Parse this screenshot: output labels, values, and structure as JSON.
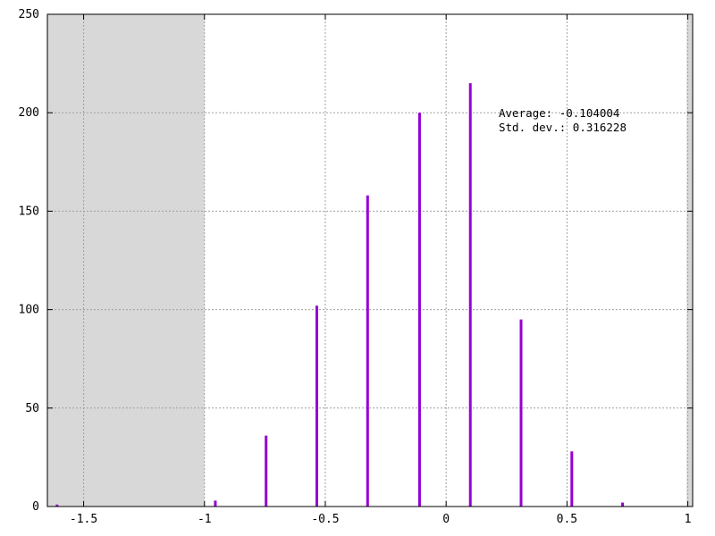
{
  "chart_data": {
    "type": "bar",
    "title": "",
    "xlabel": "",
    "ylabel": "",
    "xlim": [
      -1.65,
      1.02
    ],
    "ylim": [
      0,
      250
    ],
    "grid": true,
    "shaded_regions": [
      {
        "x_from": -1.65,
        "x_to": -1.0,
        "color": "#d8d8d8"
      },
      {
        "x_from": 0.995,
        "x_to": 1.02,
        "color": "#d8d8d8"
      }
    ],
    "bar_color": "#9400d3",
    "x_ticks": [
      -1.5,
      -1,
      -0.5,
      0,
      0.5,
      1
    ],
    "x_tick_labels": [
      "-1.5",
      "-1",
      "-0.5",
      "0",
      "0.5",
      "1"
    ],
    "y_ticks": [
      0,
      50,
      100,
      150,
      200,
      250
    ],
    "y_tick_labels": [
      "0",
      "50",
      "100",
      "150",
      "200",
      "250"
    ],
    "bars": [
      {
        "x": -1.61,
        "value": 1
      },
      {
        "x": -0.955,
        "value": 3
      },
      {
        "x": -0.745,
        "value": 36
      },
      {
        "x": -0.535,
        "value": 102
      },
      {
        "x": -0.325,
        "value": 158
      },
      {
        "x": -0.11,
        "value": 200
      },
      {
        "x": 0.1,
        "value": 215
      },
      {
        "x": 0.31,
        "value": 95
      },
      {
        "x": 0.52,
        "value": 28
      },
      {
        "x": 0.73,
        "value": 2
      }
    ],
    "annotations": {
      "average": "Average: -0.104004",
      "std_dev": "Std. dev.: 0.316228"
    }
  }
}
